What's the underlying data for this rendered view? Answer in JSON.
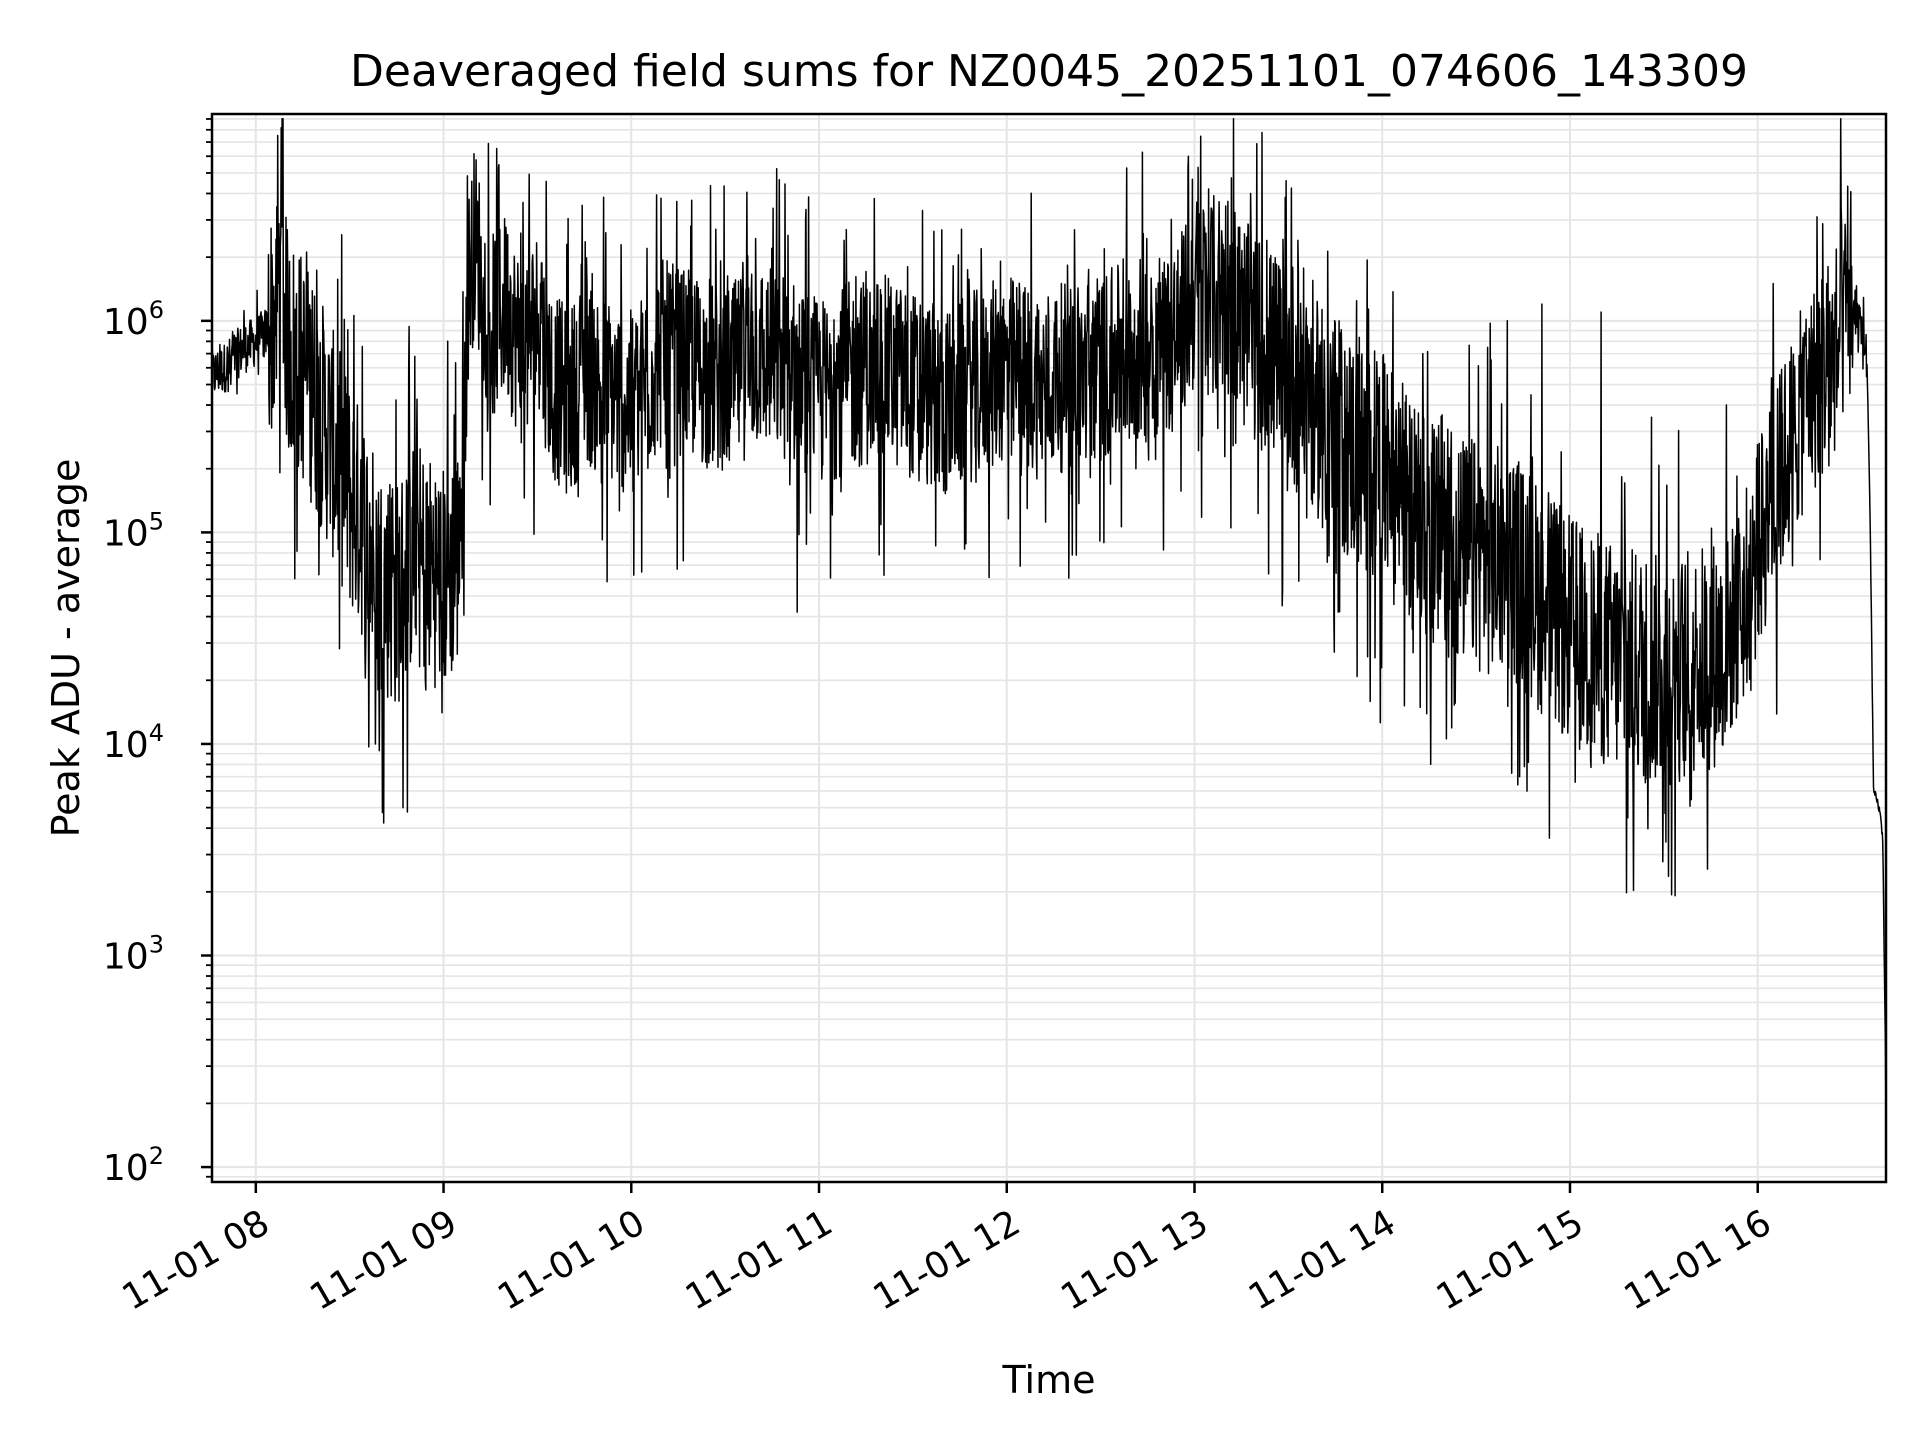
{
  "chart_data": {
    "type": "line",
    "title": "Deaveraged field sums for NZ0045_20251101_074606_143309",
    "xlabel": "Time",
    "ylabel": "Peak ADU - average",
    "yscale": "log",
    "xlim": [
      "2025-11-01 07:46",
      "2025-11-01 16:41"
    ],
    "ylim": [
      85,
      9500000
    ],
    "grid": true,
    "grid_minor": true,
    "colors": {
      "line": "#000000",
      "grid": "#e5e5e5",
      "axis": "#000000"
    },
    "x_ticks": [
      "11-01 08",
      "11-01 09",
      "11-01 10",
      "11-01 11",
      "11-01 12",
      "11-01 13",
      "11-01 14",
      "11-01 15",
      "11-01 16"
    ],
    "x_tick_hours": [
      8,
      9,
      10,
      11,
      12,
      13,
      14,
      15,
      16
    ],
    "y_ticks": [
      {
        "value": 100,
        "base": "10",
        "exp": "2"
      },
      {
        "value": 1000,
        "base": "10",
        "exp": "3"
      },
      {
        "value": 10000,
        "base": "10",
        "exp": "4"
      },
      {
        "value": 100000,
        "base": "10",
        "exp": "5"
      },
      {
        "value": 1000000,
        "base": "10",
        "exp": "6"
      }
    ],
    "series": [
      {
        "values": [
          [
            "07:46",
            550000
          ],
          [
            "07:50",
            600000
          ],
          [
            "07:55",
            720000
          ],
          [
            "08:00",
            800000
          ],
          [
            "08:04",
            900000
          ],
          [
            "08:07",
            1200000
          ],
          [
            "08:08",
            2600000
          ],
          [
            "08:10",
            800000
          ],
          [
            "08:15",
            600000
          ],
          [
            "08:20",
            400000
          ],
          [
            "08:25",
            250000
          ],
          [
            "08:30",
            150000
          ],
          [
            "08:35",
            100000
          ],
          [
            "08:40",
            60000
          ],
          [
            "08:45",
            50000
          ],
          [
            "08:50",
            80000
          ],
          [
            "08:55",
            70000
          ],
          [
            "09:00",
            60000
          ],
          [
            "09:05",
            80000
          ],
          [
            "09:08",
            1500000
          ],
          [
            "09:10",
            2500000
          ],
          [
            "09:15",
            900000
          ],
          [
            "09:20",
            1200000
          ],
          [
            "09:25",
            700000
          ],
          [
            "09:30",
            1000000
          ],
          [
            "09:35",
            500000
          ],
          [
            "09:40",
            400000
          ],
          [
            "09:45",
            600000
          ],
          [
            "09:50",
            500000
          ],
          [
            "10:00",
            400000
          ],
          [
            "10:10",
            700000
          ],
          [
            "10:20",
            600000
          ],
          [
            "10:30",
            500000
          ],
          [
            "10:40",
            700000
          ],
          [
            "10:50",
            600000
          ],
          [
            "11:00",
            450000
          ],
          [
            "11:10",
            550000
          ],
          [
            "11:20",
            600000
          ],
          [
            "11:30",
            500000
          ],
          [
            "11:40",
            400000
          ],
          [
            "11:50",
            500000
          ],
          [
            "12:00",
            600000
          ],
          [
            "12:10",
            500000
          ],
          [
            "12:20",
            550000
          ],
          [
            "12:30",
            600000
          ],
          [
            "12:40",
            700000
          ],
          [
            "12:50",
            800000
          ],
          [
            "12:55",
            900000
          ],
          [
            "13:00",
            1300000
          ],
          [
            "13:05",
            1200000
          ],
          [
            "13:10",
            1500000
          ],
          [
            "13:15",
            1000000
          ],
          [
            "13:20",
            800000
          ],
          [
            "13:25",
            700000
          ],
          [
            "13:30",
            600000
          ],
          [
            "13:35",
            500000
          ],
          [
            "13:40",
            400000
          ],
          [
            "13:45",
            300000
          ],
          [
            "13:50",
            250000
          ],
          [
            "13:55",
            220000
          ],
          [
            "14:00",
            200000
          ],
          [
            "14:05",
            150000
          ],
          [
            "14:10",
            120000
          ],
          [
            "14:15",
            100000
          ],
          [
            "14:20",
            90000
          ],
          [
            "14:25",
            80000
          ],
          [
            "14:30",
            80000
          ],
          [
            "14:35",
            70000
          ],
          [
            "14:40",
            80000
          ],
          [
            "14:45",
            60000
          ],
          [
            "14:50",
            50000
          ],
          [
            "14:55",
            40000
          ],
          [
            "15:00",
            35000
          ],
          [
            "15:05",
            30000
          ],
          [
            "15:10",
            28000
          ],
          [
            "15:15",
            25000
          ],
          [
            "15:20",
            24000
          ],
          [
            "15:25",
            23000
          ],
          [
            "15:30",
            22000
          ],
          [
            "15:35",
            23000
          ],
          [
            "15:40",
            24000
          ],
          [
            "15:45",
            26000
          ],
          [
            "15:50",
            30000
          ],
          [
            "15:55",
            45000
          ],
          [
            "16:00",
            80000
          ],
          [
            "16:05",
            150000
          ],
          [
            "16:10",
            250000
          ],
          [
            "16:15",
            400000
          ],
          [
            "16:20",
            550000
          ],
          [
            "16:24",
            650000
          ],
          [
            "16:27",
            1000000
          ],
          [
            "16:30",
            1100000
          ],
          [
            "16:33",
            1000000
          ],
          [
            "16:35",
            600000
          ],
          [
            "16:36",
            100000
          ],
          [
            "16:37",
            6000
          ],
          [
            "16:38",
            5500
          ],
          [
            "16:39",
            4800
          ],
          [
            "16:40",
            3500
          ],
          [
            "16:41",
            200
          ]
        ],
        "peaks": [
          [
            "08:08",
            2600000
          ],
          [
            "08:36",
            45000
          ],
          [
            "08:55",
            35000
          ],
          [
            "09:12",
            2500000
          ],
          [
            "10:05",
            2200000
          ],
          [
            "10:19",
            2800000
          ],
          [
            "10:53",
            42000
          ],
          [
            "11:08",
            2400000
          ],
          [
            "12:58",
            6000000
          ],
          [
            "13:03",
            3200000
          ],
          [
            "13:18",
            4000000
          ],
          [
            "13:28",
            45000
          ],
          [
            "13:33",
            2400000
          ],
          [
            "13:46",
            42000
          ],
          [
            "14:13",
            700000
          ],
          [
            "14:25",
            45000
          ],
          [
            "14:40",
            1000000
          ],
          [
            "14:51",
            1200000
          ],
          [
            "15:03",
            20000
          ],
          [
            "15:10",
            1100000
          ],
          [
            "15:20",
            14000
          ],
          [
            "15:26",
            350000
          ],
          [
            "15:38",
            14000
          ],
          [
            "15:50",
            400000
          ],
          [
            "16:05",
            1500000
          ],
          [
            "16:19",
            3100000
          ],
          [
            "16:28",
            2400000
          ]
        ]
      }
    ]
  }
}
